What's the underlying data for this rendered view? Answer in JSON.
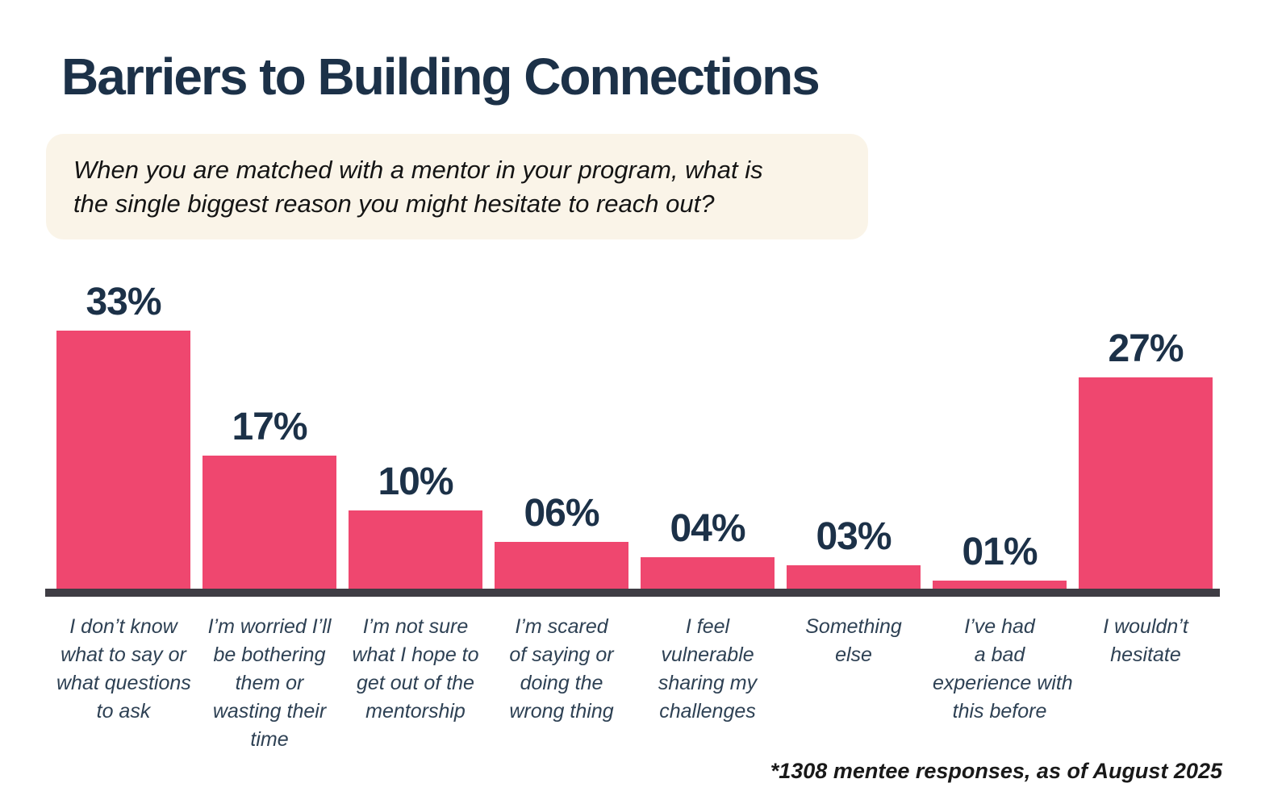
{
  "title": "Barriers to Building Connections",
  "subtitle": "When you are matched with a mentor in your program, what is\nthe single biggest reason you might hesitate to reach out?",
  "footnote": "*1308 mentee responses, as of August 2025",
  "colors": {
    "bar": "#EF476F",
    "title_text": "#1C3148",
    "category_text": "#2E4154",
    "axis_line": "#3F3D44",
    "subtitle_bg": "#FAF4E8"
  },
  "chart_data": {
    "type": "bar",
    "title": "Barriers to Building Connections",
    "subtitle": "When you are matched with a mentor in your program, what is the single biggest reason you might hesitate to reach out?",
    "categories": [
      "I don’t know\nwhat to say or\nwhat questions\nto ask",
      "I’m worried I’ll\nbe bothering\nthem or\nwasting their\ntime",
      "I’m not sure\nwhat I hope to\nget out of the\nmentorship",
      "I’m scared\nof saying or\ndoing the\nwrong thing",
      "I feel\nvulnerable\nsharing my\nchallenges",
      "Something\nelse",
      "I’ve had\na bad\nexperience with\nthis before",
      "I wouldn’t\nhesitate"
    ],
    "values": [
      33,
      17,
      10,
      6,
      4,
      3,
      1,
      27
    ],
    "value_labels": [
      "33%",
      "17%",
      "10%",
      "06%",
      "04%",
      "03%",
      "01%",
      "27%"
    ],
    "unit": "%",
    "xlabel": "",
    "ylabel": "",
    "ylim": [
      0,
      35
    ],
    "grid": false,
    "legend": false,
    "annotation": "*1308 mentee responses, as of August 2025"
  }
}
